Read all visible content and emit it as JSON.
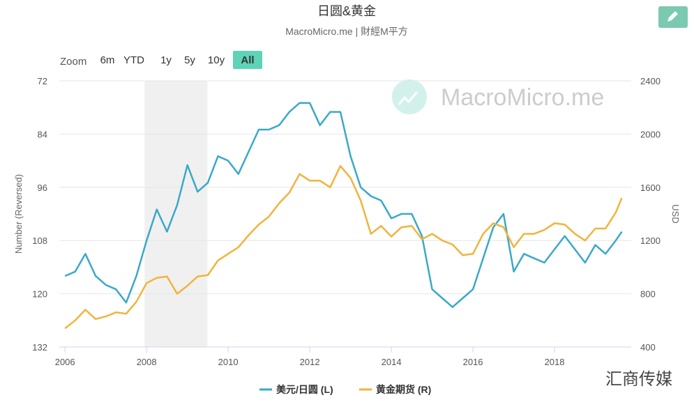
{
  "chart_data": {
    "type": "line",
    "title": "日圆&黄金",
    "subtitle": "MacroMicro.me | 財經M平方",
    "y_label": "Number (Reversed)",
    "y2_label": "USD",
    "x": [
      2006,
      2006.25,
      2006.5,
      2006.75,
      2007,
      2007.25,
      2007.5,
      2007.75,
      2008,
      2008.25,
      2008.5,
      2008.75,
      2009,
      2009.25,
      2009.5,
      2009.75,
      2010,
      2010.25,
      2010.5,
      2010.75,
      2011,
      2011.25,
      2011.5,
      2011.75,
      2012,
      2012.25,
      2012.5,
      2012.75,
      2013,
      2013.25,
      2013.5,
      2013.75,
      2014,
      2014.25,
      2014.5,
      2014.75,
      2015,
      2015.25,
      2015.5,
      2015.75,
      2016,
      2016.25,
      2016.5,
      2016.75,
      2017,
      2017.25,
      2017.5,
      2017.75,
      2018,
      2018.25,
      2018.5,
      2018.75,
      2019,
      2019.25,
      2019.5,
      2019.65
    ],
    "series": [
      {
        "name": "美元/日圆 (L)",
        "color": "#3aa8c9",
        "axis": "y",
        "values": [
          116,
          115,
          111,
          116,
          118,
          119,
          122,
          116,
          108,
          101,
          106,
          100,
          91,
          97,
          95,
          89,
          90,
          93,
          88,
          83,
          83,
          82,
          79,
          77,
          77,
          82,
          79,
          79,
          89,
          96,
          98,
          99,
          103,
          102,
          102,
          107,
          119,
          121,
          123,
          121,
          119,
          112,
          105,
          102,
          115,
          111,
          112,
          113,
          110,
          107,
          110,
          113,
          109,
          111,
          108,
          106
        ]
      },
      {
        "name": "黄金期货 (R)",
        "color": "#f0b43c",
        "axis": "y2",
        "values": [
          540,
          600,
          680,
          610,
          630,
          660,
          650,
          740,
          880,
          920,
          930,
          800,
          860,
          930,
          940,
          1050,
          1100,
          1150,
          1240,
          1320,
          1380,
          1480,
          1560,
          1700,
          1650,
          1650,
          1600,
          1760,
          1670,
          1500,
          1250,
          1310,
          1230,
          1300,
          1310,
          1210,
          1250,
          1200,
          1170,
          1090,
          1100,
          1250,
          1330,
          1300,
          1150,
          1250,
          1250,
          1280,
          1330,
          1320,
          1250,
          1200,
          1290,
          1290,
          1410,
          1520
        ]
      }
    ],
    "xlim": [
      2005.86,
      2019.88
    ],
    "xticks": [
      2006,
      2008,
      2010,
      2012,
      2014,
      2016,
      2018
    ],
    "ylim": [
      72,
      132
    ],
    "y_reversed": true,
    "yticks": [
      72,
      84,
      96,
      108,
      120,
      132
    ],
    "y2lim": [
      400,
      2400
    ],
    "y2ticks": [
      400,
      800,
      1200,
      1600,
      2000,
      2400
    ],
    "grid": true,
    "plot_bands": [
      {
        "from": 2007.95,
        "to": 2009.49
      }
    ],
    "legend": "bottom"
  },
  "ui": {
    "zoom_label": "Zoom",
    "zoom_options": [
      "6m",
      "YTD",
      "1y",
      "5y",
      "10y",
      "All"
    ],
    "zoom_active": 5,
    "watermark": "MacroMicro.me",
    "corner_watermark": "汇商传媒"
  }
}
